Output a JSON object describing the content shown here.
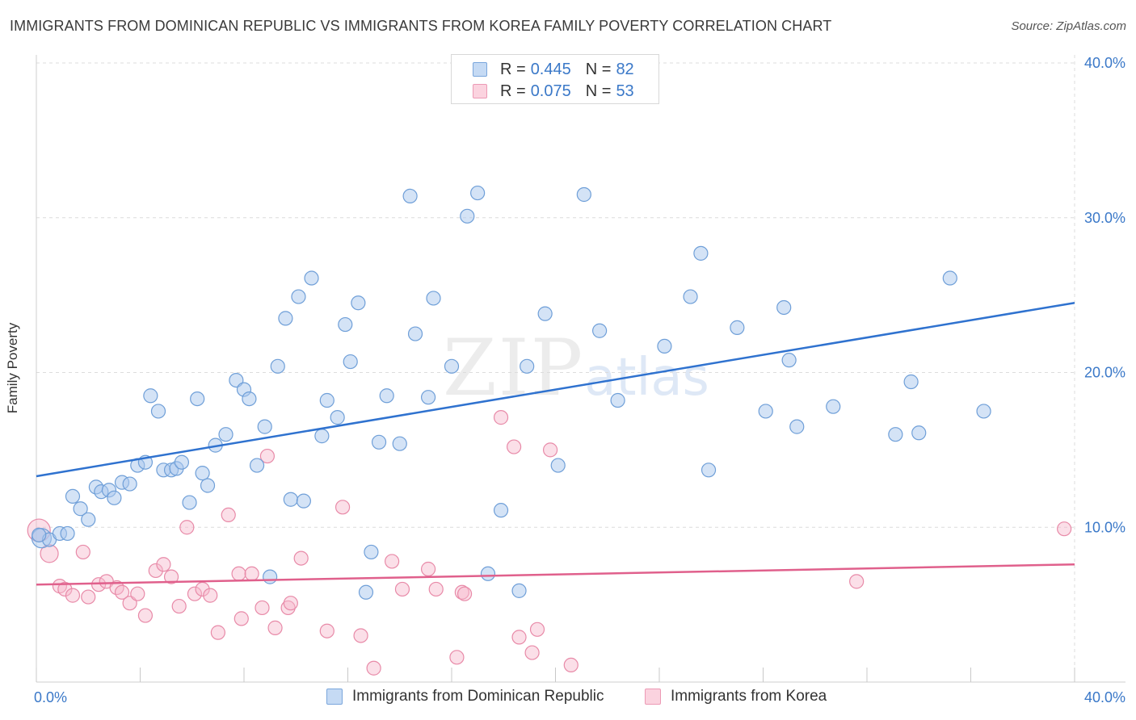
{
  "title": "IMMIGRANTS FROM DOMINICAN REPUBLIC VS IMMIGRANTS FROM KOREA FAMILY POVERTY CORRELATION CHART",
  "source": "Source: ZipAtlas.com",
  "watermark": {
    "zip": "ZIP",
    "atlas": "atlas"
  },
  "legend": {
    "rows": [
      {
        "r_label": "R =",
        "r_value": "0.445",
        "n_label": "N =",
        "n_value": "82"
      },
      {
        "r_label": "R =",
        "r_value": "0.075",
        "n_label": "N =",
        "n_value": "53"
      }
    ]
  },
  "colors": {
    "series1_fill": "#a9c7ee",
    "series1_stroke": "#6f9fd8",
    "series1_line": "#2f72cf",
    "series2_fill": "#f6b8cb",
    "series2_stroke": "#e88aa8",
    "series2_line": "#e0608c",
    "axis_tick": "#3a78c8",
    "grid": "#dcdcdc"
  },
  "chart_data": {
    "type": "scatter",
    "title": "IMMIGRANTS FROM DOMINICAN REPUBLIC VS IMMIGRANTS FROM KOREA FAMILY POVERTY CORRELATION CHART",
    "xlabel": "",
    "ylabel": "Family Poverty",
    "xlim": [
      0,
      40
    ],
    "ylim": [
      0,
      40
    ],
    "x_ticks": [
      0,
      40
    ],
    "x_tick_labels": [
      "0.0%",
      "40.0%"
    ],
    "y_ticks": [
      10,
      20,
      30,
      40
    ],
    "y_tick_labels": [
      "10.0%",
      "20.0%",
      "30.0%",
      "40.0%"
    ],
    "grid": true,
    "legend_position": "top-center",
    "series": [
      {
        "name": "Immigrants from Dominican Republic",
        "r": 0.445,
        "n": 82,
        "trend": {
          "x": [
            0,
            40
          ],
          "y": [
            13.3,
            24.5
          ]
        },
        "points": [
          [
            0.2,
            9.3
          ],
          [
            0.5,
            9.2
          ],
          [
            0.9,
            9.6
          ],
          [
            1.2,
            9.6
          ],
          [
            1.4,
            12.0
          ],
          [
            1.7,
            11.2
          ],
          [
            2.0,
            10.5
          ],
          [
            2.3,
            12.6
          ],
          [
            2.5,
            12.3
          ],
          [
            2.8,
            12.4
          ],
          [
            3.0,
            11.9
          ],
          [
            3.3,
            12.9
          ],
          [
            3.6,
            12.8
          ],
          [
            3.9,
            14.0
          ],
          [
            4.2,
            14.2
          ],
          [
            4.4,
            18.5
          ],
          [
            4.7,
            17.5
          ],
          [
            4.9,
            13.7
          ],
          [
            5.2,
            13.7
          ],
          [
            5.4,
            13.8
          ],
          [
            5.6,
            14.2
          ],
          [
            5.9,
            11.6
          ],
          [
            6.2,
            18.3
          ],
          [
            6.4,
            13.5
          ],
          [
            6.6,
            12.7
          ],
          [
            6.9,
            15.3
          ],
          [
            7.3,
            16.0
          ],
          [
            7.7,
            19.5
          ],
          [
            8.0,
            18.9
          ],
          [
            8.2,
            18.3
          ],
          [
            8.5,
            14.0
          ],
          [
            8.8,
            16.5
          ],
          [
            9.0,
            6.8
          ],
          [
            9.3,
            20.4
          ],
          [
            9.6,
            23.5
          ],
          [
            9.8,
            11.8
          ],
          [
            10.1,
            24.9
          ],
          [
            10.3,
            11.7
          ],
          [
            10.6,
            26.1
          ],
          [
            11.0,
            15.9
          ],
          [
            11.2,
            18.2
          ],
          [
            11.6,
            17.1
          ],
          [
            11.9,
            23.1
          ],
          [
            12.1,
            20.7
          ],
          [
            12.4,
            24.5
          ],
          [
            12.7,
            5.8
          ],
          [
            12.9,
            8.4
          ],
          [
            13.2,
            15.5
          ],
          [
            13.5,
            18.5
          ],
          [
            14.0,
            15.4
          ],
          [
            14.4,
            31.4
          ],
          [
            14.6,
            22.5
          ],
          [
            15.1,
            18.4
          ],
          [
            15.3,
            24.8
          ],
          [
            16.0,
            20.4
          ],
          [
            16.6,
            30.1
          ],
          [
            17.0,
            31.6
          ],
          [
            17.4,
            7.0
          ],
          [
            17.9,
            11.1
          ],
          [
            18.6,
            5.9
          ],
          [
            18.9,
            20.4
          ],
          [
            19.6,
            23.8
          ],
          [
            20.1,
            14.0
          ],
          [
            21.1,
            31.5
          ],
          [
            21.7,
            22.7
          ],
          [
            22.4,
            18.2
          ],
          [
            24.2,
            21.7
          ],
          [
            25.2,
            24.9
          ],
          [
            25.6,
            27.7
          ],
          [
            25.9,
            13.7
          ],
          [
            27.0,
            22.9
          ],
          [
            28.1,
            17.5
          ],
          [
            28.8,
            24.2
          ],
          [
            29.0,
            20.8
          ],
          [
            29.3,
            16.5
          ],
          [
            30.7,
            17.8
          ],
          [
            33.1,
            16.0
          ],
          [
            33.7,
            19.4
          ],
          [
            34.0,
            16.1
          ],
          [
            35.2,
            26.1
          ],
          [
            36.5,
            17.5
          ],
          [
            0.1,
            9.5
          ]
        ]
      },
      {
        "name": "Immigrants from Korea",
        "r": 0.075,
        "n": 53,
        "trend": {
          "x": [
            0,
            40
          ],
          "y": [
            6.3,
            7.6
          ]
        },
        "points": [
          [
            0.1,
            9.8
          ],
          [
            0.5,
            8.3
          ],
          [
            0.9,
            6.2
          ],
          [
            1.1,
            6.0
          ],
          [
            1.4,
            5.6
          ],
          [
            1.8,
            8.4
          ],
          [
            2.0,
            5.5
          ],
          [
            2.4,
            6.3
          ],
          [
            2.7,
            6.5
          ],
          [
            3.1,
            6.1
          ],
          [
            3.3,
            5.8
          ],
          [
            3.6,
            5.1
          ],
          [
            3.9,
            5.7
          ],
          [
            4.2,
            4.3
          ],
          [
            4.6,
            7.2
          ],
          [
            4.9,
            7.6
          ],
          [
            5.2,
            6.8
          ],
          [
            5.5,
            4.9
          ],
          [
            5.8,
            10.0
          ],
          [
            6.1,
            5.7
          ],
          [
            6.4,
            6.0
          ],
          [
            6.7,
            5.6
          ],
          [
            7.0,
            3.2
          ],
          [
            7.4,
            10.8
          ],
          [
            7.8,
            7.0
          ],
          [
            7.9,
            4.1
          ],
          [
            8.3,
            7.0
          ],
          [
            8.7,
            4.8
          ],
          [
            8.9,
            14.6
          ],
          [
            9.2,
            3.5
          ],
          [
            9.7,
            4.8
          ],
          [
            9.8,
            5.1
          ],
          [
            10.2,
            8.0
          ],
          [
            11.2,
            3.3
          ],
          [
            11.8,
            11.3
          ],
          [
            12.5,
            3.0
          ],
          [
            13.0,
            0.9
          ],
          [
            13.7,
            7.8
          ],
          [
            14.1,
            6.0
          ],
          [
            15.1,
            7.3
          ],
          [
            15.4,
            6.0
          ],
          [
            16.2,
            1.6
          ],
          [
            16.4,
            5.8
          ],
          [
            16.5,
            5.7
          ],
          [
            17.9,
            17.1
          ],
          [
            18.4,
            15.2
          ],
          [
            18.6,
            2.9
          ],
          [
            19.1,
            1.9
          ],
          [
            19.3,
            3.4
          ],
          [
            19.8,
            15.0
          ],
          [
            20.6,
            1.1
          ],
          [
            31.6,
            6.5
          ],
          [
            39.6,
            9.9
          ]
        ]
      }
    ]
  }
}
